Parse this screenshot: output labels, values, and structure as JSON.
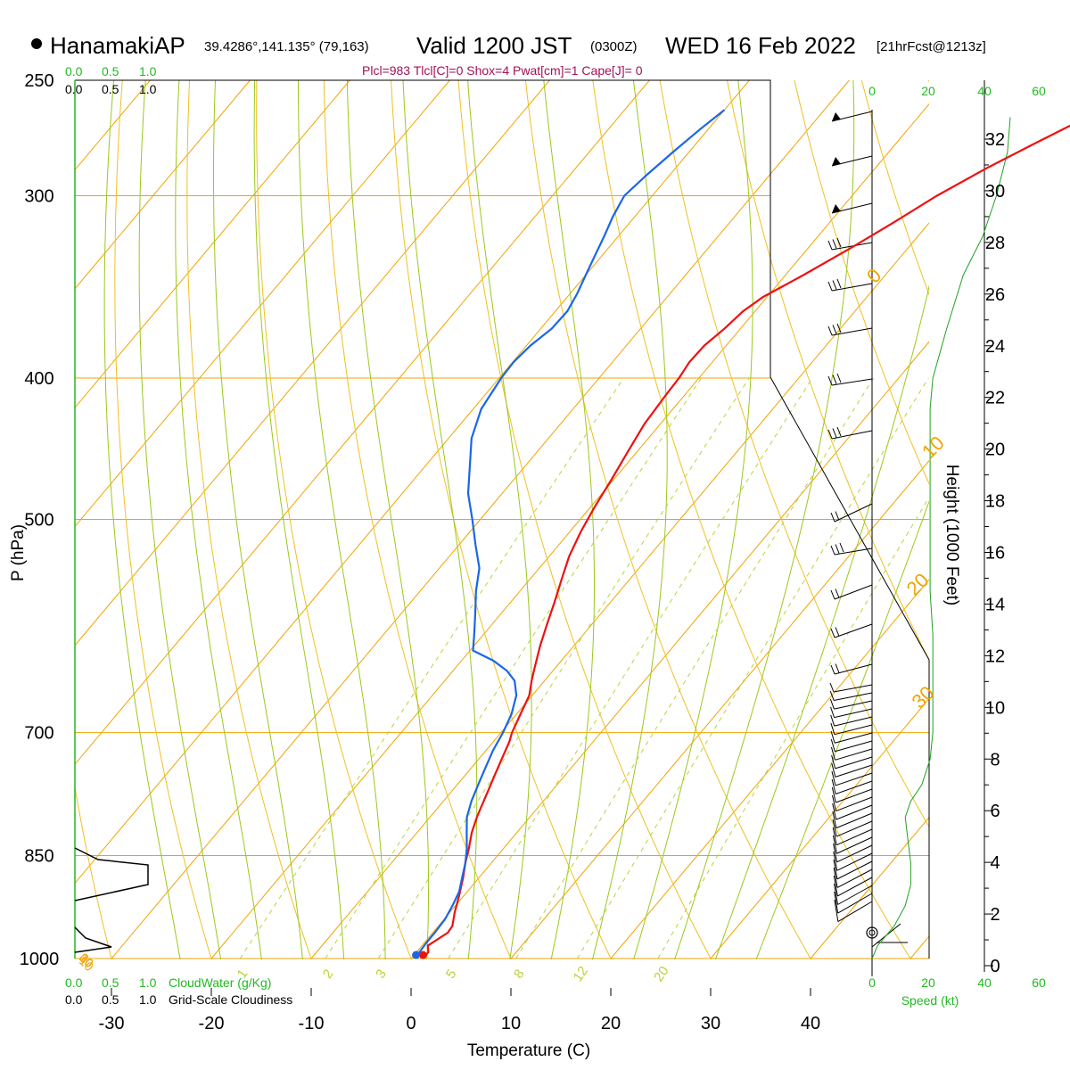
{
  "header": {
    "station": "HanamakiAP",
    "coords": "39.4286°,141.135° (79,163)",
    "valid": "Valid 1200 JST",
    "utc": "(0300Z)",
    "date": "WED 16 Feb 2022",
    "forecast": "[21hrFcst@1213z]",
    "parcel_info": "Plcl=983 Tlcl[C]=0 Shox=4 Pwat[cm]=1 Cape[J]= 0"
  },
  "cloud_scale": {
    "top_green": [
      "0.0",
      "0.5",
      "1.0"
    ],
    "top_black": [
      "0.0",
      "0.5",
      "1.0"
    ],
    "bottom_green": [
      "0.0",
      "0.5",
      "1.0"
    ],
    "bottom_black": [
      "0.0",
      "0.5",
      "1.0"
    ],
    "cloudwater_label": "CloudWater (g/Kg)",
    "cloudiness_label": "Grid-Scale Cloudiness"
  },
  "speed_scale": {
    "ticks": [
      "0",
      "20",
      "40",
      "60"
    ],
    "label": "Speed (kt)"
  },
  "colors": {
    "temperature": "#ee1111",
    "dewpoint": "#1a66e8",
    "isotherm": "#f0a400",
    "dry_adiabat": "#f0c020",
    "moist_adiabat": "#9cc81c",
    "mixing_ratio": "#b8d43a",
    "wind_speed": "#22a022",
    "labels_green": "#22b822"
  },
  "chart_data": {
    "type": "line",
    "title": "HanamakiAP Valid 1200 JST (0300Z) WED 16 Feb 2022 [21hrFcst@1213z]",
    "xlabel": "Temperature (C)",
    "ylabel": "P (hPa)",
    "y2label": "Height (1000 Feet)",
    "x_ticks": [
      "-30",
      "-20",
      "-10",
      "0",
      "10",
      "20",
      "30",
      "40"
    ],
    "y_ticks": [
      "250",
      "300",
      "400",
      "500",
      "700",
      "850",
      "1000"
    ],
    "height_ticks": [
      "0",
      "2",
      "4",
      "6",
      "8",
      "10",
      "12",
      "14",
      "16",
      "18",
      "20",
      "22",
      "24",
      "26",
      "28",
      "30",
      "32"
    ],
    "isotherm_labels": [
      "-30",
      "-20",
      "-10",
      "0",
      "10",
      "20",
      "30"
    ],
    "isotherm_labels_right": [
      "0",
      "10",
      "20",
      "30"
    ],
    "mixing_ratio_labels": [
      "1",
      "2",
      "3",
      "5",
      "8",
      "12",
      "20"
    ],
    "pressure_range": [
      1000,
      250
    ],
    "temperature_range": [
      -35,
      45
    ],
    "grid": true,
    "series": [
      {
        "name": "Temperature",
        "points": [
          [
            1.2,
            1000
          ],
          [
            1.2,
            990
          ],
          [
            0.6,
            980
          ],
          [
            1.5,
            960
          ],
          [
            1.4,
            950
          ],
          [
            0.5,
            930
          ],
          [
            -0.5,
            905
          ],
          [
            -1.6,
            880
          ],
          [
            -2.6,
            860
          ],
          [
            -3.5,
            840
          ],
          [
            -4.5,
            820
          ],
          [
            -5.3,
            800
          ],
          [
            -5.8,
            785
          ],
          [
            -6.3,
            770
          ],
          [
            -7.0,
            750
          ],
          [
            -7.7,
            730
          ],
          [
            -8.4,
            710
          ],
          [
            -8.9,
            700
          ],
          [
            -9.6,
            680
          ],
          [
            -10.3,
            660
          ],
          [
            -11.3,
            645
          ],
          [
            -12.2,
            630
          ],
          [
            -13.4,
            610
          ],
          [
            -14.5,
            590
          ],
          [
            -15.6,
            570
          ],
          [
            -16.8,
            550
          ],
          [
            -18.0,
            530
          ],
          [
            -18.9,
            510
          ],
          [
            -19.6,
            490
          ],
          [
            -20.2,
            470
          ],
          [
            -20.9,
            450
          ],
          [
            -21.6,
            430
          ],
          [
            -21.9,
            410
          ],
          [
            -22.0,
            400
          ],
          [
            -22.3,
            390
          ],
          [
            -22.2,
            380
          ],
          [
            -21.6,
            370
          ],
          [
            -21.2,
            360
          ],
          [
            -20.4,
            352
          ],
          [
            -18.2,
            340
          ],
          [
            -15.6,
            325
          ],
          [
            -13.6,
            313
          ],
          [
            -11.5,
            300
          ],
          [
            -8.8,
            287
          ],
          [
            -6.3,
            277
          ],
          [
            -3.9,
            268
          ],
          [
            -1.5,
            260
          ]
        ]
      },
      {
        "name": "Dewpoint",
        "points": [
          [
            0.5,
            1000
          ],
          [
            0.3,
            990
          ],
          [
            0.2,
            975
          ],
          [
            0.2,
            960
          ],
          [
            0.1,
            940
          ],
          [
            -0.3,
            920
          ],
          [
            -0.8,
            900
          ],
          [
            -1.7,
            880
          ],
          [
            -2.6,
            860
          ],
          [
            -3.7,
            840
          ],
          [
            -5.0,
            820
          ],
          [
            -6.3,
            800
          ],
          [
            -7.2,
            780
          ],
          [
            -7.9,
            760
          ],
          [
            -8.6,
            740
          ],
          [
            -9.3,
            720
          ],
          [
            -9.8,
            700
          ],
          [
            -10.5,
            680
          ],
          [
            -11.6,
            660
          ],
          [
            -13.0,
            645
          ],
          [
            -14.6,
            635
          ],
          [
            -16.8,
            625
          ],
          [
            -19.7,
            615
          ],
          [
            -20.9,
            600
          ],
          [
            -22.6,
            580
          ],
          [
            -24.4,
            560
          ],
          [
            -26.0,
            540
          ],
          [
            -28.4,
            520
          ],
          [
            -30.8,
            500
          ],
          [
            -33.4,
            480
          ],
          [
            -35.5,
            460
          ],
          [
            -37.7,
            440
          ],
          [
            -39.2,
            420
          ],
          [
            -39.8,
            400
          ],
          [
            -39.9,
            390
          ],
          [
            -39.6,
            380
          ],
          [
            -38.9,
            370
          ],
          [
            -38.8,
            360
          ],
          [
            -39.3,
            350
          ],
          [
            -40.0,
            340
          ],
          [
            -40.7,
            330
          ],
          [
            -41.4,
            320
          ],
          [
            -42.2,
            310
          ],
          [
            -42.8,
            300
          ],
          [
            -42.3,
            290
          ],
          [
            -41.6,
            280
          ],
          [
            -40.8,
            270
          ],
          [
            -40.0,
            262
          ]
        ]
      }
    ],
    "wind_speed_profile": {
      "name": "Speed (kt)",
      "points": [
        [
          0,
          1000
        ],
        [
          2,
          980
        ],
        [
          8,
          950
        ],
        [
          12,
          920
        ],
        [
          14,
          890
        ],
        [
          14,
          860
        ],
        [
          13,
          830
        ],
        [
          12,
          800
        ],
        [
          14,
          780
        ],
        [
          18,
          760
        ],
        [
          21,
          730
        ],
        [
          22,
          700
        ],
        [
          22,
          650
        ],
        [
          22,
          600
        ],
        [
          21,
          560
        ],
        [
          21,
          520
        ],
        [
          21,
          480
        ],
        [
          21,
          440
        ],
        [
          21,
          420
        ],
        [
          22,
          400
        ],
        [
          27,
          370
        ],
        [
          33,
          340
        ],
        [
          40,
          320
        ],
        [
          45,
          300
        ],
        [
          49,
          280
        ],
        [
          50,
          265
        ]
      ]
    }
  }
}
